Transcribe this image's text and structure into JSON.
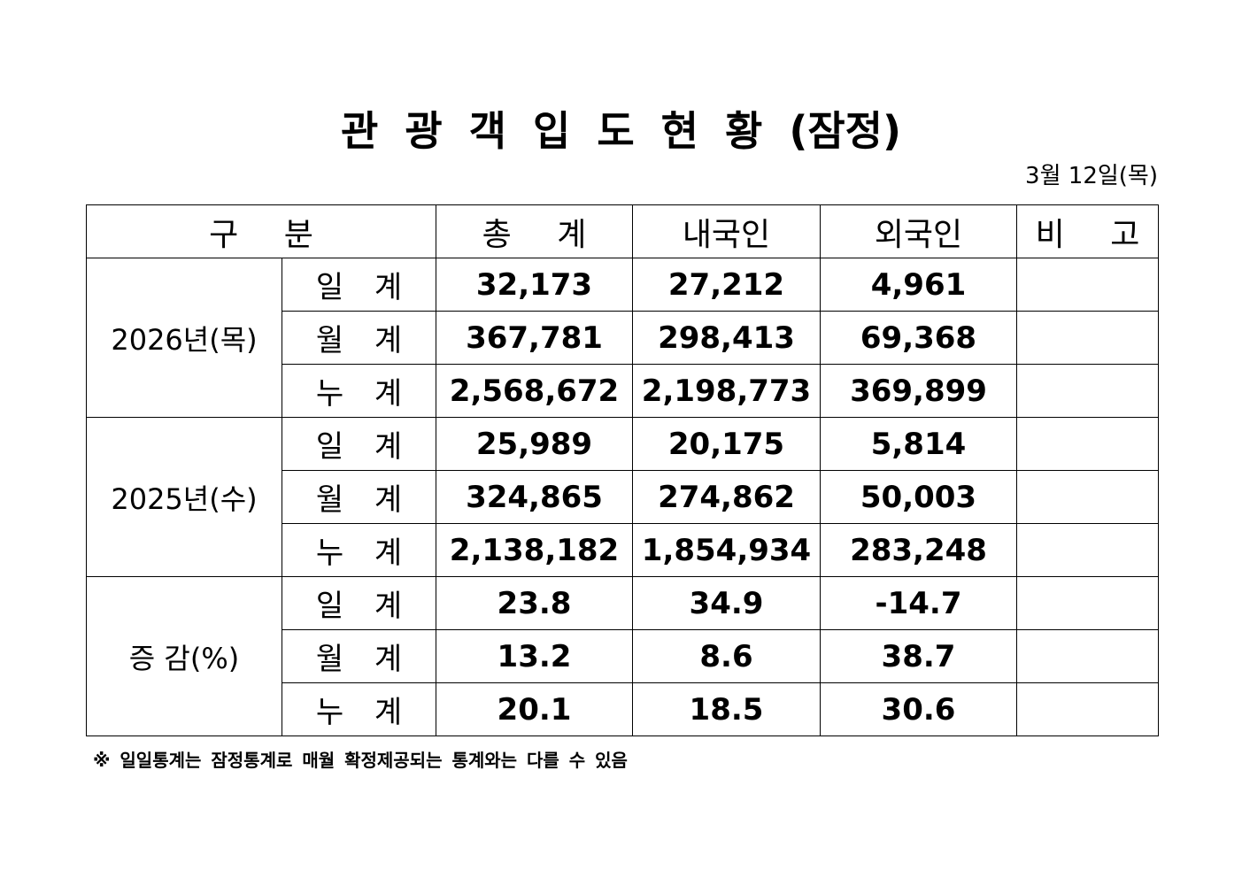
{
  "header": {
    "title": "관 광 객 입 도 현 황 (잠정)",
    "date": "3월 12일(목)"
  },
  "table": {
    "columns": [
      "구 분",
      "총 계",
      "내국인",
      "외국인",
      "비 고"
    ],
    "groups": [
      {
        "label": "2026년(목)",
        "rows": [
          {
            "label": "일 계",
            "values": [
              "32,173",
              "27,212",
              "4,961"
            ]
          },
          {
            "label": "월 계",
            "values": [
              "367,781",
              "298,413",
              "69,368"
            ]
          },
          {
            "label": "누 계",
            "values": [
              "2,568,672",
              "2,198,773",
              "369,899"
            ]
          }
        ]
      },
      {
        "label": "2025년(수)",
        "rows": [
          {
            "label": "일 계",
            "values": [
              "25,989",
              "20,175",
              "5,814"
            ]
          },
          {
            "label": "월 계",
            "values": [
              "324,865",
              "274,862",
              "50,003"
            ]
          },
          {
            "label": "누 계",
            "values": [
              "2,138,182",
              "1,854,934",
              "283,248"
            ]
          }
        ]
      },
      {
        "label": "증 감(%)",
        "rows": [
          {
            "label": "일 계",
            "values": [
              "23.8",
              "34.9",
              "-14.7"
            ]
          },
          {
            "label": "월 계",
            "values": [
              "13.2",
              "8.6",
              "38.7"
            ]
          },
          {
            "label": "누 계",
            "values": [
              "20.1",
              "18.5",
              "30.6"
            ]
          }
        ]
      }
    ]
  },
  "footnote": "※ 일일통계는 잠정통계로 매월 확정제공되는 통계와는 다를 수 있음"
}
